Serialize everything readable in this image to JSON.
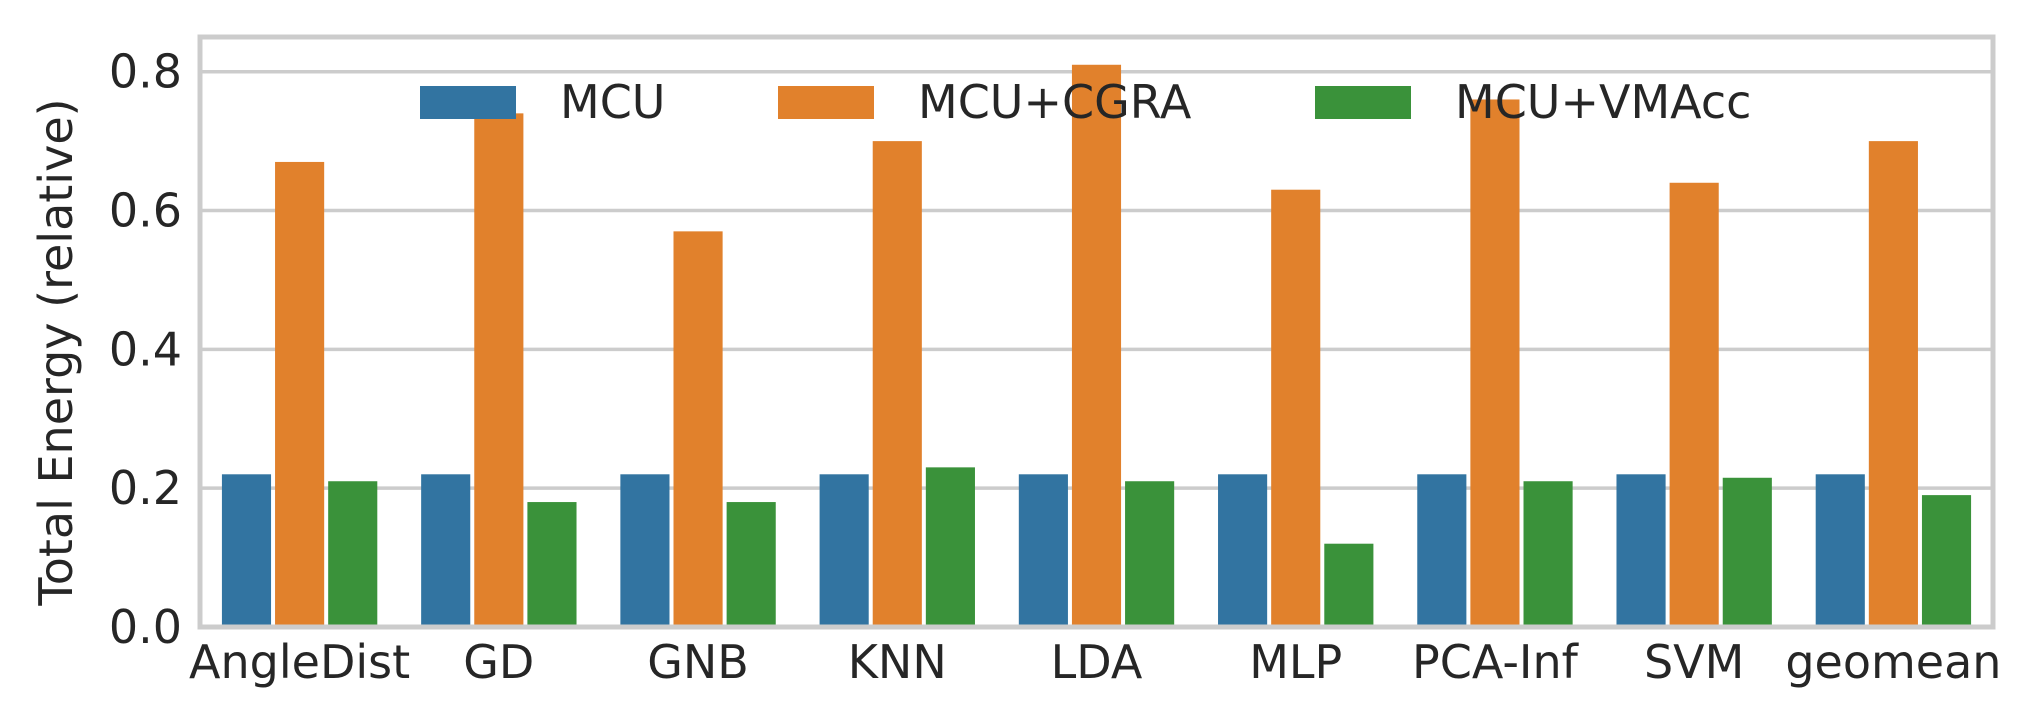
{
  "chart_data": {
    "type": "bar",
    "title": "",
    "xlabel": "",
    "ylabel": "Total Energy (relative)",
    "ylim": [
      0,
      0.85
    ],
    "yticks": [
      0.0,
      0.2,
      0.4,
      0.6,
      0.8
    ],
    "ytick_labels": [
      "0.0",
      "0.2",
      "0.4",
      "0.6",
      "0.8"
    ],
    "grid": "horizontal",
    "legend_position": "top",
    "categories": [
      "AngleDist",
      "GD",
      "GNB",
      "KNN",
      "LDA",
      "MLP",
      "PCA-Inf",
      "SVM",
      "geomean"
    ],
    "series": [
      {
        "name": "MCU",
        "color": "#3274a1",
        "values": [
          0.22,
          0.22,
          0.22,
          0.22,
          0.22,
          0.22,
          0.22,
          0.22,
          0.22
        ]
      },
      {
        "name": "MCU+CGRA",
        "color": "#e1812c",
        "values": [
          0.67,
          0.74,
          0.57,
          0.7,
          0.81,
          0.63,
          0.76,
          0.64,
          0.7
        ]
      },
      {
        "name": "MCU+VMAcc",
        "color": "#3a923a",
        "values": [
          0.21,
          0.18,
          0.18,
          0.23,
          0.21,
          0.12,
          0.21,
          0.215,
          0.19
        ]
      }
    ]
  }
}
